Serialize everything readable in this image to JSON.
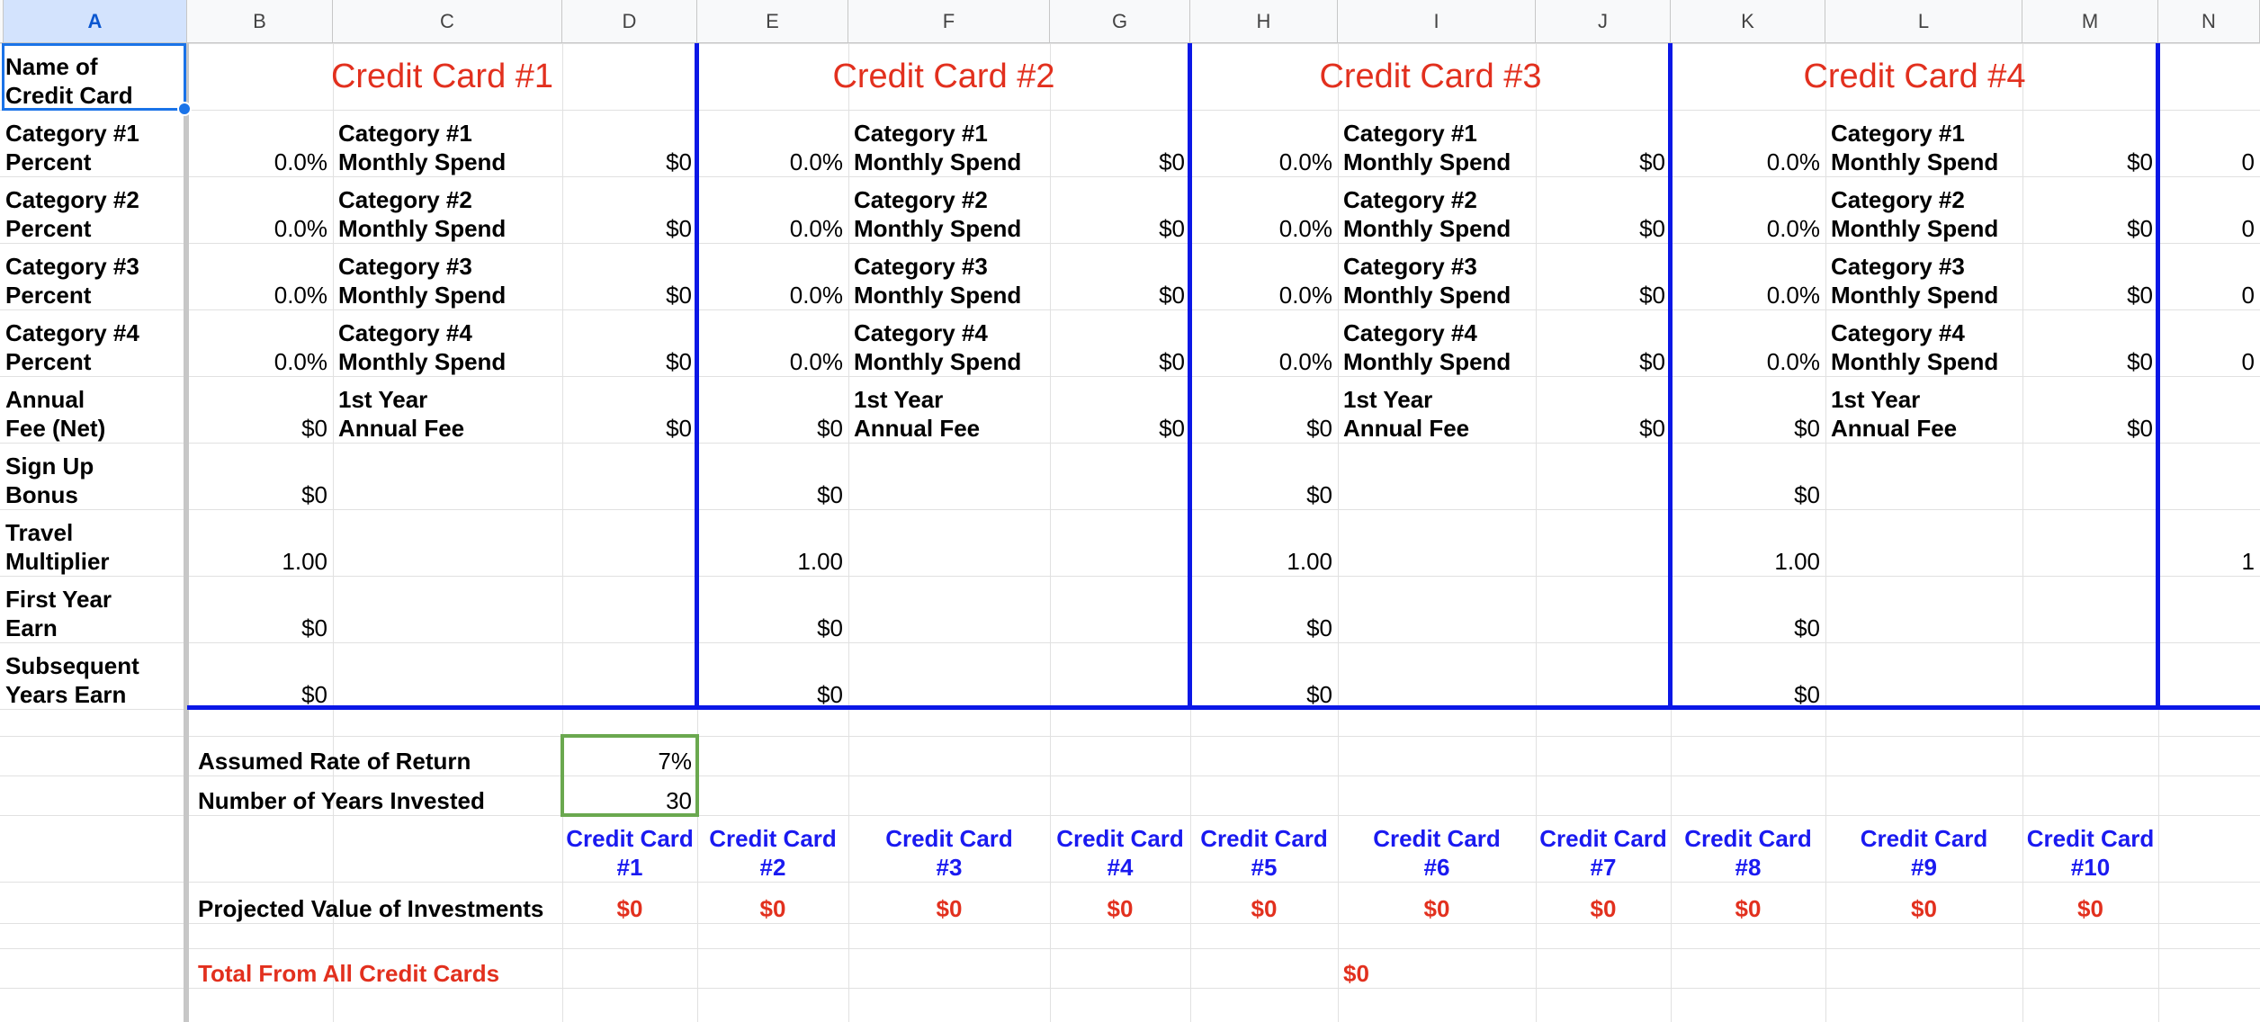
{
  "columns": [
    "A",
    "B",
    "C",
    "D",
    "E",
    "F",
    "G",
    "H",
    "I",
    "J",
    "K",
    "L",
    "M",
    "N"
  ],
  "rows": {
    "titles": [
      "Name of Credit Card",
      "Credit Card #1",
      "Credit Card #2",
      "Credit Card #3",
      "Credit Card #4"
    ],
    "row_labels": [
      "Category #1 Percent",
      "Category #2 Percent",
      "Category #3 Percent",
      "Category #4 Percent",
      "Annual Fee (Net)",
      "Sign Up Bonus",
      "Travel Multiplier",
      "First Year Earn",
      "Subsequent Years Earn"
    ],
    "spend_labels": [
      "Category #1 Monthly Spend",
      "Category #2 Monthly Spend",
      "Category #3 Monthly Spend",
      "Category #4 Monthly Spend",
      "1st Year Annual Fee"
    ],
    "b_values": [
      "0.0%",
      "0.0%",
      "0.0%",
      "0.0%",
      "$0",
      "$0",
      "1.00",
      "$0",
      "$0"
    ],
    "d_values": [
      "$0",
      "$0",
      "$0",
      "$0",
      "$0"
    ],
    "n_partial": [
      "0",
      "0",
      "0",
      "0",
      "",
      "",
      "1",
      "",
      ""
    ]
  },
  "investment": {
    "rate_label": "Assumed Rate of Return",
    "rate_value": "7%",
    "years_label": "Number of Years Invested",
    "years_value": "30",
    "card_headers": [
      "Credit Card #1",
      "Credit Card #2",
      "Credit Card #3",
      "Credit Card #4",
      "Credit Card #5",
      "Credit Card #6",
      "Credit Card #7",
      "Credit Card #8",
      "Credit Card #9",
      "Credit Card #10"
    ],
    "projected_label": "Projected Value of Investments",
    "projected_values": [
      "$0",
      "$0",
      "$0",
      "$0",
      "$0",
      "$0",
      "$0",
      "$0",
      "$0",
      "$0"
    ],
    "total_label": "Total From All Credit Cards",
    "total_value": "$0"
  }
}
